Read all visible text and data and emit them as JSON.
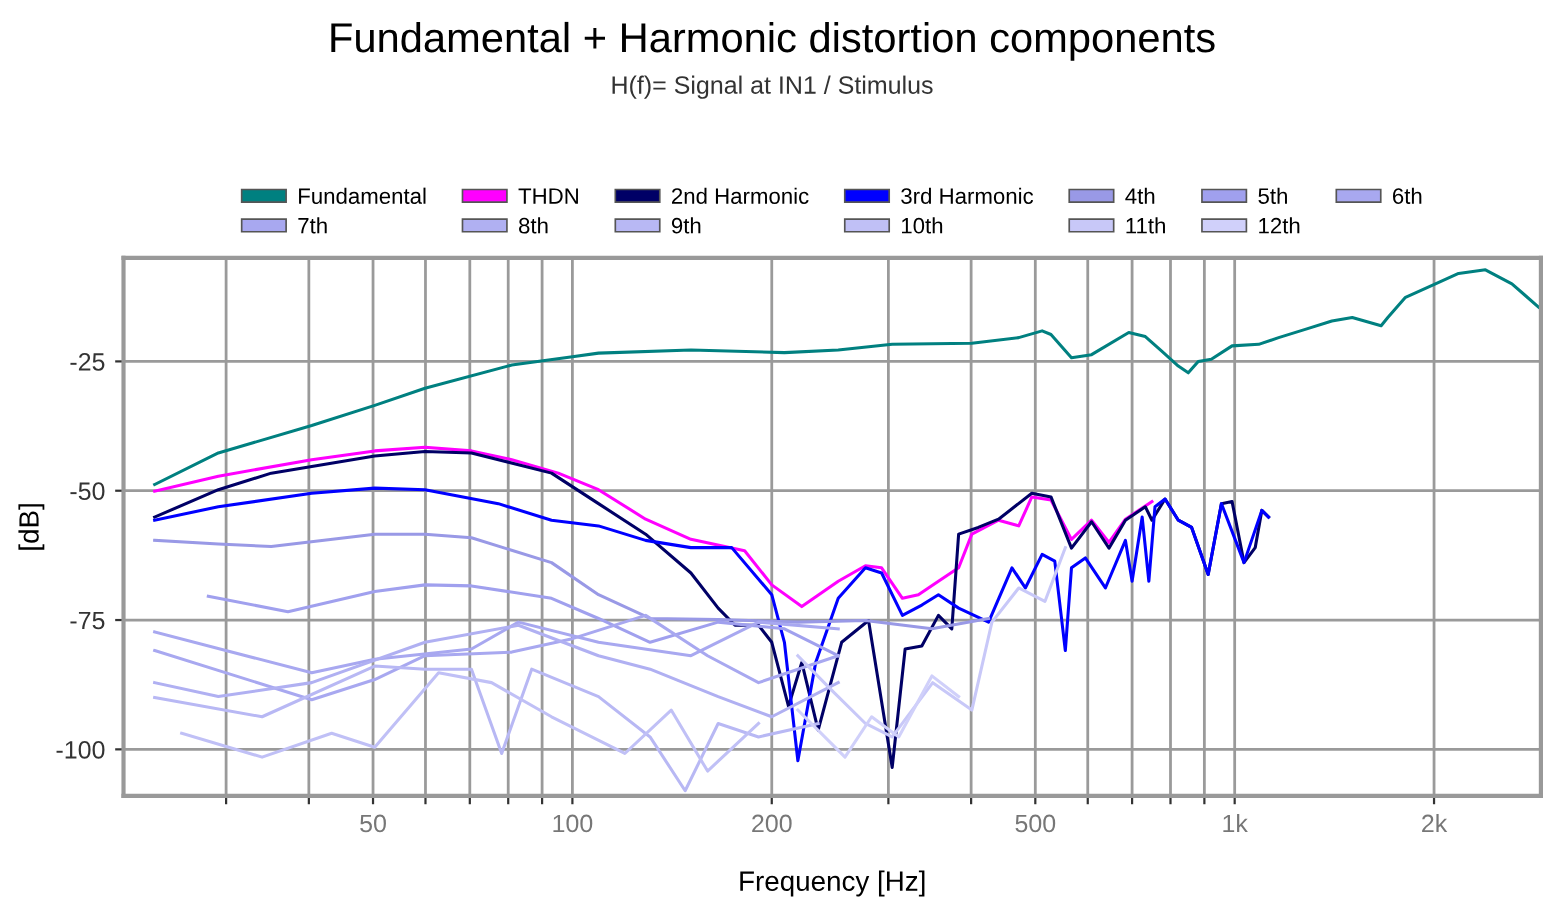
{
  "chart_data": {
    "type": "line",
    "title": "Fundamental + Harmonic distortion components",
    "subtitle": "H(f)= Signal at IN1 / Stimulus",
    "xlabel": "Frequency [Hz]",
    "ylabel": "[dB]",
    "log": "x",
    "grid": true,
    "legend": "top",
    "xlim": [
      21,
      2900
    ],
    "ylim": [
      -109,
      -5
    ],
    "xticks": [
      {
        "value": 30,
        "label": null
      },
      {
        "value": 40,
        "label": null
      },
      50,
      {
        "value": 60,
        "label": null
      },
      {
        "value": 70,
        "label": null
      },
      {
        "value": 80,
        "label": null
      },
      {
        "value": 90,
        "label": null
      },
      100,
      200,
      {
        "value": 300,
        "label": null
      },
      {
        "value": 400,
        "label": null
      },
      500,
      {
        "value": 600,
        "label": null
      },
      {
        "value": 700,
        "label": null
      },
      {
        "value": 800,
        "label": null
      },
      {
        "value": 900,
        "label": null
      },
      {
        "value": 1000,
        "label": "1k"
      },
      {
        "value": 2000,
        "label": "2k"
      }
    ],
    "yticks": [
      -25,
      -50,
      -75,
      -100
    ],
    "series": [
      {
        "name": "Fundamental",
        "color": "#008080",
        "x": [
          23.4,
          29.2,
          40.4,
          50.3,
          59.9,
          81,
          100,
          109.5,
          151,
          209,
          252,
          304,
          401,
          472,
          512,
          528,
          567,
          608,
          692,
          733,
          776,
          822,
          851,
          881,
          922,
          991,
          1087,
          1165,
          1278,
          1402,
          1505,
          1664,
          1703,
          1811,
          2033,
          2178,
          2391,
          2622,
          2876
        ],
        "values": [
          -48.8,
          -42.7,
          -37.4,
          -33.5,
          -30.2,
          -25.7,
          -24.1,
          -23.4,
          -22.8,
          -23.3,
          -22.8,
          -21.7,
          -21.5,
          -20.4,
          -19.1,
          -19.8,
          -24.3,
          -23.7,
          -19.4,
          -20.2,
          -23.0,
          -25.9,
          -27.2,
          -25.0,
          -24.6,
          -22.0,
          -21.7,
          -20.4,
          -18.8,
          -17.2,
          -16.5,
          -18.1,
          -16.5,
          -12.6,
          -9.7,
          -8.0,
          -7.3,
          -10.0,
          -14.5
        ]
      },
      {
        "name": "THDN",
        "color": "#ff00ff",
        "x": [
          23.4,
          29.2,
          40.4,
          50.3,
          59.9,
          70.4,
          81,
          95.2,
          109.5,
          129,
          151,
          182,
          200,
          222,
          252,
          277,
          293,
          315,
          333,
          357,
          383,
          401,
          440,
          472,
          494,
          528,
          567,
          608,
          646,
          684,
          750
        ],
        "values": [
          -50.1,
          -47.2,
          -44.0,
          -42.3,
          -41.6,
          -42.3,
          -44.0,
          -46.6,
          -49.8,
          -55.5,
          -59.4,
          -61.6,
          -68.2,
          -72.4,
          -67.5,
          -64.5,
          -64.9,
          -70.8,
          -70.1,
          -67.5,
          -64.9,
          -58.4,
          -55.7,
          -56.8,
          -51.2,
          -51.8,
          -59.4,
          -55.7,
          -60.0,
          -55.5,
          -52.1
        ]
      },
      {
        "name": "2nd Harmonic",
        "color": "#000066",
        "x": [
          23.4,
          29.2,
          35.1,
          50.3,
          59.9,
          70.4,
          93,
          109.5,
          129,
          151,
          166,
          176,
          191,
          200,
          212,
          222,
          235,
          255,
          280,
          304,
          318,
          337,
          357,
          374,
          383,
          410,
          440,
          494,
          528,
          567,
          608,
          646,
          684,
          733,
          750,
          785,
          822,
          861,
          912,
          955,
          991,
          1033,
          1074,
          1099,
          1125
        ],
        "values": [
          -55.1,
          -49.8,
          -46.6,
          -43.3,
          -42.4,
          -42.7,
          -46.6,
          -52.5,
          -58.4,
          -65.9,
          -72.7,
          -76.0,
          -76.0,
          -79.3,
          -91.7,
          -83.2,
          -96.3,
          -79.3,
          -75.1,
          -103.5,
          -80.6,
          -80.0,
          -74.1,
          -76.7,
          -58.4,
          -57.1,
          -55.5,
          -50.5,
          -51.2,
          -61.1,
          -56.0,
          -61.1,
          -55.7,
          -53.1,
          -55.7,
          -51.6,
          -55.7,
          -57.1,
          -66.2,
          -52.5,
          -52.1,
          -63.9,
          -61.0,
          -53.8,
          -55.1
        ]
      },
      {
        "name": "3rd Harmonic",
        "color": "#0000ff",
        "x": [
          23.4,
          29.2,
          40.4,
          50.3,
          59.9,
          77.3,
          93,
          109.5,
          129,
          151,
          174,
          200,
          209,
          219,
          233,
          252,
          277,
          293,
          315,
          337,
          357,
          383,
          425,
          461,
          483,
          512,
          535,
          555,
          567,
          595,
          638,
          684,
          700,
          725,
          742,
          758,
          785,
          822,
          861,
          912,
          955,
          1033,
          1099,
          1125
        ],
        "values": [
          -55.7,
          -53.1,
          -50.5,
          -49.5,
          -49.8,
          -52.5,
          -55.7,
          -56.8,
          -59.6,
          -61.0,
          -61.0,
          -70.1,
          -79.3,
          -102.2,
          -83.2,
          -70.8,
          -64.9,
          -65.9,
          -74.1,
          -72.1,
          -70.1,
          -72.7,
          -75.4,
          -64.9,
          -68.8,
          -62.3,
          -63.6,
          -80.9,
          -64.9,
          -63.0,
          -68.8,
          -59.6,
          -67.5,
          -55.1,
          -67.5,
          -53.1,
          -51.6,
          -55.7,
          -57.1,
          -66.2,
          -52.5,
          -63.9,
          -53.8,
          -55.1
        ]
      },
      {
        "name": "4th",
        "color": "#9999e6",
        "x": [
          23.4,
          29.2,
          35.1,
          50.3,
          59.9,
          70.4,
          93,
          109.5,
          131,
          166,
          219,
          277,
          349,
          425
        ],
        "values": [
          -59.6,
          -60.3,
          -60.8,
          -58.4,
          -58.4,
          -59.1,
          -63.9,
          -70.1,
          -74.7,
          -74.9,
          -75.4,
          -75.1,
          -76.7,
          -74.7
        ]
      },
      {
        "name": "5th",
        "color": "#a0a0ee",
        "x": [
          28.2,
          37.2,
          50.3,
          59.9,
          70.4,
          93,
          109.5,
          131,
          166,
          209,
          252
        ],
        "values": [
          -70.4,
          -73.4,
          -69.5,
          -68.2,
          -68.4,
          -70.8,
          -74.7,
          -79.3,
          -75.4,
          -76.7,
          -81.9
        ]
      },
      {
        "name": "6th",
        "color": "#a8a8f0",
        "x": [
          23.4,
          40.4,
          50.3,
          70.4,
          82.9,
          109.5,
          151,
          191,
          252
        ],
        "values": [
          -77.3,
          -85.2,
          -82.6,
          -80.6,
          -75.4,
          -79.3,
          -81.9,
          -75.4,
          -76.7
        ]
      },
      {
        "name": "7th",
        "color": "#a8a8f0",
        "x": [
          23.4,
          40.4,
          50.3,
          59.9,
          81,
          100,
          129,
          160,
          191,
          252
        ],
        "values": [
          -80.9,
          -90.4,
          -86.5,
          -81.9,
          -81.2,
          -78.6,
          -74.1,
          -81.9,
          -87.1,
          -81.9
        ]
      },
      {
        "name": "8th",
        "color": "#b0b0f2",
        "x": [
          23.4,
          29.2,
          40.4,
          59.9,
          82.9,
          109.5,
          131,
          166,
          200,
          252
        ],
        "values": [
          -87.1,
          -89.8,
          -87.1,
          -79.3,
          -76.0,
          -81.9,
          -84.5,
          -89.8,
          -93.7,
          -87.1
        ]
      },
      {
        "name": "9th",
        "color": "#b8b8f4",
        "x": [
          23.4,
          34,
          50.3,
          59.9,
          70.4,
          78.2,
          86.8,
          109.5,
          131,
          148,
          166,
          191,
          235
        ],
        "values": [
          -90.0,
          -93.7,
          -83.9,
          -84.5,
          -84.5,
          -100.8,
          -84.5,
          -89.8,
          -97.6,
          -108.0,
          -95.0,
          -97.6,
          -95.0
        ]
      },
      {
        "name": "10th",
        "color": "#c0c0f6",
        "x": [
          25.7,
          34,
          43.3,
          50.3,
          62.8,
          75.5,
          93,
          120,
          141,
          160,
          191
        ],
        "values": [
          -96.9,
          -101.5,
          -96.9,
          -99.6,
          -85.2,
          -87.1,
          -93.7,
          -100.8,
          -92.4,
          -104.2,
          -95.0
        ]
      },
      {
        "name": "11th",
        "color": "#c8c8f8",
        "x": [
          219,
          246,
          277,
          304,
          350,
          401,
          430,
          472,
          517,
          555
        ],
        "values": [
          -81.9,
          -88.5,
          -95.0,
          -97.6,
          -87.1,
          -92.4,
          -75.4,
          -68.8,
          -71.4,
          -61.0
        ]
      },
      {
        "name": "12th",
        "color": "#d0d0fa",
        "x": [
          219,
          258,
          283,
          311,
          349,
          383
        ],
        "values": [
          -92.4,
          -101.5,
          -93.7,
          -97.6,
          -85.8,
          -89.8
        ]
      }
    ]
  }
}
